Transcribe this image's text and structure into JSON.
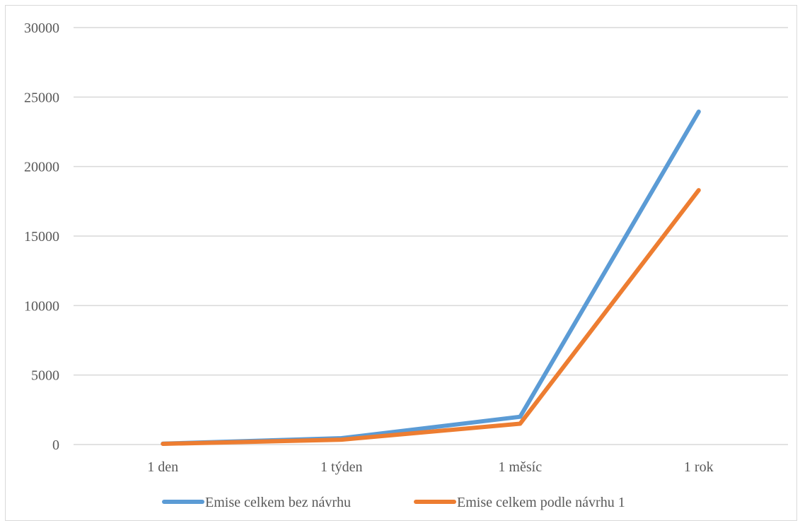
{
  "chart_data": {
    "type": "line",
    "title": "",
    "xlabel": "",
    "ylabel": "",
    "categories": [
      "1 den",
      "1 týden",
      "1 měsíc",
      "1 rok"
    ],
    "ylim": [
      0,
      30000
    ],
    "yticks": [
      "0",
      "5000",
      "10000",
      "15000",
      "20000",
      "25000",
      "30000"
    ],
    "grid": true,
    "legend_position": "bottom",
    "series": [
      {
        "name": "Emise celkem bez návrhu",
        "color": "#5B9BD5",
        "values": [
          65,
          460,
          2000,
          23950
        ]
      },
      {
        "name": "Emise celkem podle návrhu 1",
        "color": "#ED7D31",
        "values": [
          50,
          350,
          1500,
          18300
        ]
      }
    ]
  }
}
